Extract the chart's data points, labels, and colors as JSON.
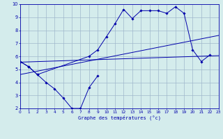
{
  "title": "Graphe des températures (°c)",
  "background_color": "#d4ecec",
  "grid_color": "#a0b8cc",
  "line_color": "#0000aa",
  "ylim": [
    2,
    10
  ],
  "xlim": [
    0,
    23
  ],
  "yticks": [
    2,
    3,
    4,
    5,
    6,
    7,
    8,
    9,
    10
  ],
  "xticks": [
    0,
    1,
    2,
    3,
    4,
    5,
    6,
    7,
    8,
    9,
    10,
    11,
    12,
    13,
    14,
    15,
    16,
    17,
    18,
    19,
    20,
    21,
    22,
    23
  ],
  "trend1_x": [
    0,
    23
  ],
  "trend1_y": [
    5.55,
    6.05
  ],
  "trend2_x": [
    0,
    23
  ],
  "trend2_y": [
    4.6,
    7.6
  ],
  "upper_line_x": [
    0,
    1,
    2,
    8,
    9,
    10,
    11,
    12,
    13,
    14,
    15,
    16,
    17,
    18,
    19,
    20,
    21,
    22
  ],
  "upper_line_y": [
    5.6,
    5.2,
    4.6,
    6.0,
    6.5,
    7.5,
    8.5,
    9.6,
    8.9,
    9.5,
    9.5,
    9.5,
    9.3,
    9.8,
    9.3,
    6.5,
    5.6,
    6.1
  ],
  "lower_line_x": [
    0,
    1,
    2,
    3,
    4,
    5,
    6,
    7,
    8,
    9
  ],
  "lower_line_y": [
    5.6,
    5.2,
    4.6,
    4.0,
    3.5,
    2.8,
    2.0,
    2.0,
    3.6,
    4.5
  ]
}
